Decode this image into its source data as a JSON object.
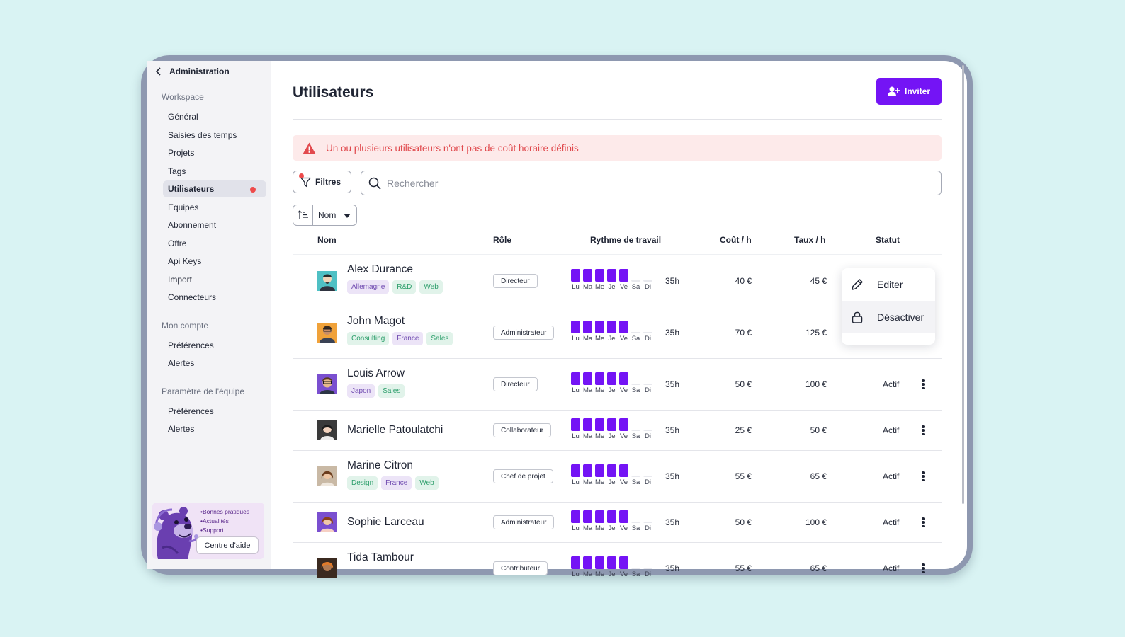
{
  "sidebar": {
    "back_label": "Administration",
    "sections": [
      {
        "title": "Workspace",
        "items": [
          "Général",
          "Saisies des temps",
          "Projets",
          "Tags",
          "Utilisateurs",
          "Equipes",
          "Abonnement",
          "Offre",
          "Api Keys",
          "Import",
          "Connecteurs"
        ]
      },
      {
        "title": "Mon compte",
        "items": [
          "Préférences",
          "Alertes"
        ]
      },
      {
        "title": "Paramètre de l'équipe",
        "items": [
          "Préférences",
          "Alertes"
        ]
      }
    ],
    "active_item": "Utilisateurs",
    "help": {
      "links": [
        "•Bonnes pratiques",
        "•Actualités",
        "•Support"
      ],
      "button": "Centre d'aide"
    }
  },
  "header": {
    "title": "Utilisateurs",
    "invite_label": "Inviter"
  },
  "alert": {
    "message": "Un ou plusieurs utilisateurs n'ont pas de coût horaire définis",
    "color": "#e0484c"
  },
  "toolbar": {
    "filter_label": "Filtres",
    "search_placeholder": "Rechercher",
    "sort_label": "Nom"
  },
  "table": {
    "columns": [
      "Nom",
      "Rôle",
      "Rythme de travail",
      "Coût / h",
      "Taux / h",
      "Statut"
    ],
    "days": [
      "Lu",
      "Ma",
      "Me",
      "Je",
      "Ve",
      "Sa",
      "Di"
    ],
    "rows": [
      {
        "name": "Alex Durance",
        "tags": [
          {
            "label": "Allemagne",
            "tone": "p"
          },
          {
            "label": "R&D",
            "tone": "g"
          },
          {
            "label": "Web",
            "tone": "g"
          }
        ],
        "role": "Directeur",
        "hours": "35h",
        "cost": "40 €",
        "rate": "45 €",
        "status": "",
        "workdays": 5
      },
      {
        "name": "John Magot",
        "tags": [
          {
            "label": "Consulting",
            "tone": "g"
          },
          {
            "label": "France",
            "tone": "p"
          },
          {
            "label": "Sales",
            "tone": "g"
          }
        ],
        "role": "Administrateur",
        "hours": "35h",
        "cost": "70 €",
        "rate": "125 €",
        "status": "",
        "workdays": 5
      },
      {
        "name": "Louis Arrow",
        "tags": [
          {
            "label": "Japon",
            "tone": "p"
          },
          {
            "label": "Sales",
            "tone": "g"
          }
        ],
        "role": "Directeur",
        "hours": "35h",
        "cost": "50 €",
        "rate": "100 €",
        "status": "Actif",
        "workdays": 5
      },
      {
        "name": "Marielle Patoulatchi",
        "tags": [],
        "role": "Collaborateur",
        "hours": "35h",
        "cost": "25 €",
        "rate": "50 €",
        "status": "Actif",
        "workdays": 5
      },
      {
        "name": "Marine Citron",
        "tags": [
          {
            "label": "Design",
            "tone": "g"
          },
          {
            "label": "France",
            "tone": "p"
          },
          {
            "label": "Web",
            "tone": "g"
          }
        ],
        "role": "Chef de projet",
        "hours": "35h",
        "cost": "55 €",
        "rate": "65 €",
        "status": "Actif",
        "workdays": 5
      },
      {
        "name": "Sophie Larceau",
        "tags": [],
        "role": "Administrateur",
        "hours": "35h",
        "cost": "50 €",
        "rate": "100 €",
        "status": "Actif",
        "workdays": 5
      },
      {
        "name": "Tida Tambour",
        "tags": [],
        "role": "Contributeur",
        "hours": "35h",
        "cost": "55 €",
        "rate": "65 €",
        "status": "Actif",
        "workdays": 5
      }
    ]
  },
  "context_menu": {
    "items": [
      {
        "label": "Editer",
        "icon": "pencil-icon"
      },
      {
        "label": "Désactiver",
        "icon": "lock-icon"
      }
    ]
  },
  "colors": {
    "accent": "#7414f5",
    "alert_bg": "#fdeaea",
    "background": "#d9f3f3"
  }
}
